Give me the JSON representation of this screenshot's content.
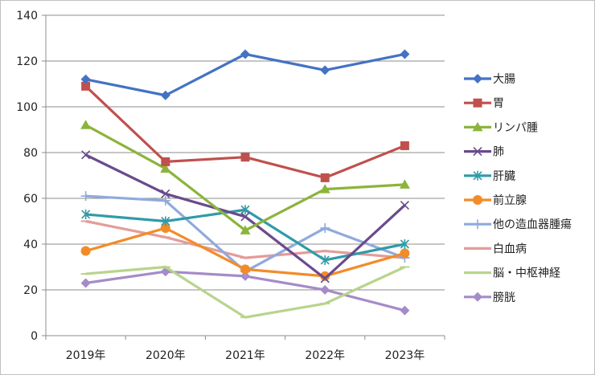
{
  "chart_data": {
    "type": "line",
    "categories": [
      "2019年",
      "2020年",
      "2021年",
      "2022年",
      "2023年"
    ],
    "ylim": [
      0,
      140
    ],
    "yticks": [
      0,
      20,
      40,
      60,
      80,
      100,
      120,
      140
    ],
    "grid": true,
    "legend_position": "right",
    "series": [
      {
        "name": "大腸",
        "values": [
          112,
          105,
          123,
          116,
          123
        ],
        "color": "#4472C4",
        "marker": "diamond"
      },
      {
        "name": "胃",
        "values": [
          109,
          76,
          78,
          69,
          83
        ],
        "color": "#C0504D",
        "marker": "square"
      },
      {
        "name": "リンパ腫",
        "values": [
          92,
          73,
          46,
          64,
          66
        ],
        "color": "#8CB43C",
        "marker": "triangle"
      },
      {
        "name": "肺",
        "values": [
          79,
          62,
          52,
          25,
          57
        ],
        "color": "#6A4A8C",
        "marker": "x"
      },
      {
        "name": "肝臓",
        "values": [
          53,
          50,
          55,
          33,
          40
        ],
        "color": "#2F9BA8",
        "marker": "star"
      },
      {
        "name": "前立腺",
        "values": [
          37,
          47,
          29,
          26,
          36
        ],
        "color": "#F28C28",
        "marker": "circle"
      },
      {
        "name": "他の造血器腫瘍",
        "values": [
          61,
          59,
          28,
          47,
          34
        ],
        "color": "#8FAADC",
        "marker": "plus"
      },
      {
        "name": "白血病",
        "values": [
          50,
          43,
          34,
          37,
          34
        ],
        "color": "#E39C9A",
        "marker": "dash"
      },
      {
        "name": "脳・中枢神経",
        "values": [
          27,
          30,
          8,
          14,
          30
        ],
        "color": "#B8D48C",
        "marker": "dash"
      },
      {
        "name": "膀胱",
        "values": [
          23,
          28,
          26,
          20,
          11
        ],
        "color": "#A58BC8",
        "marker": "diamond"
      }
    ]
  }
}
